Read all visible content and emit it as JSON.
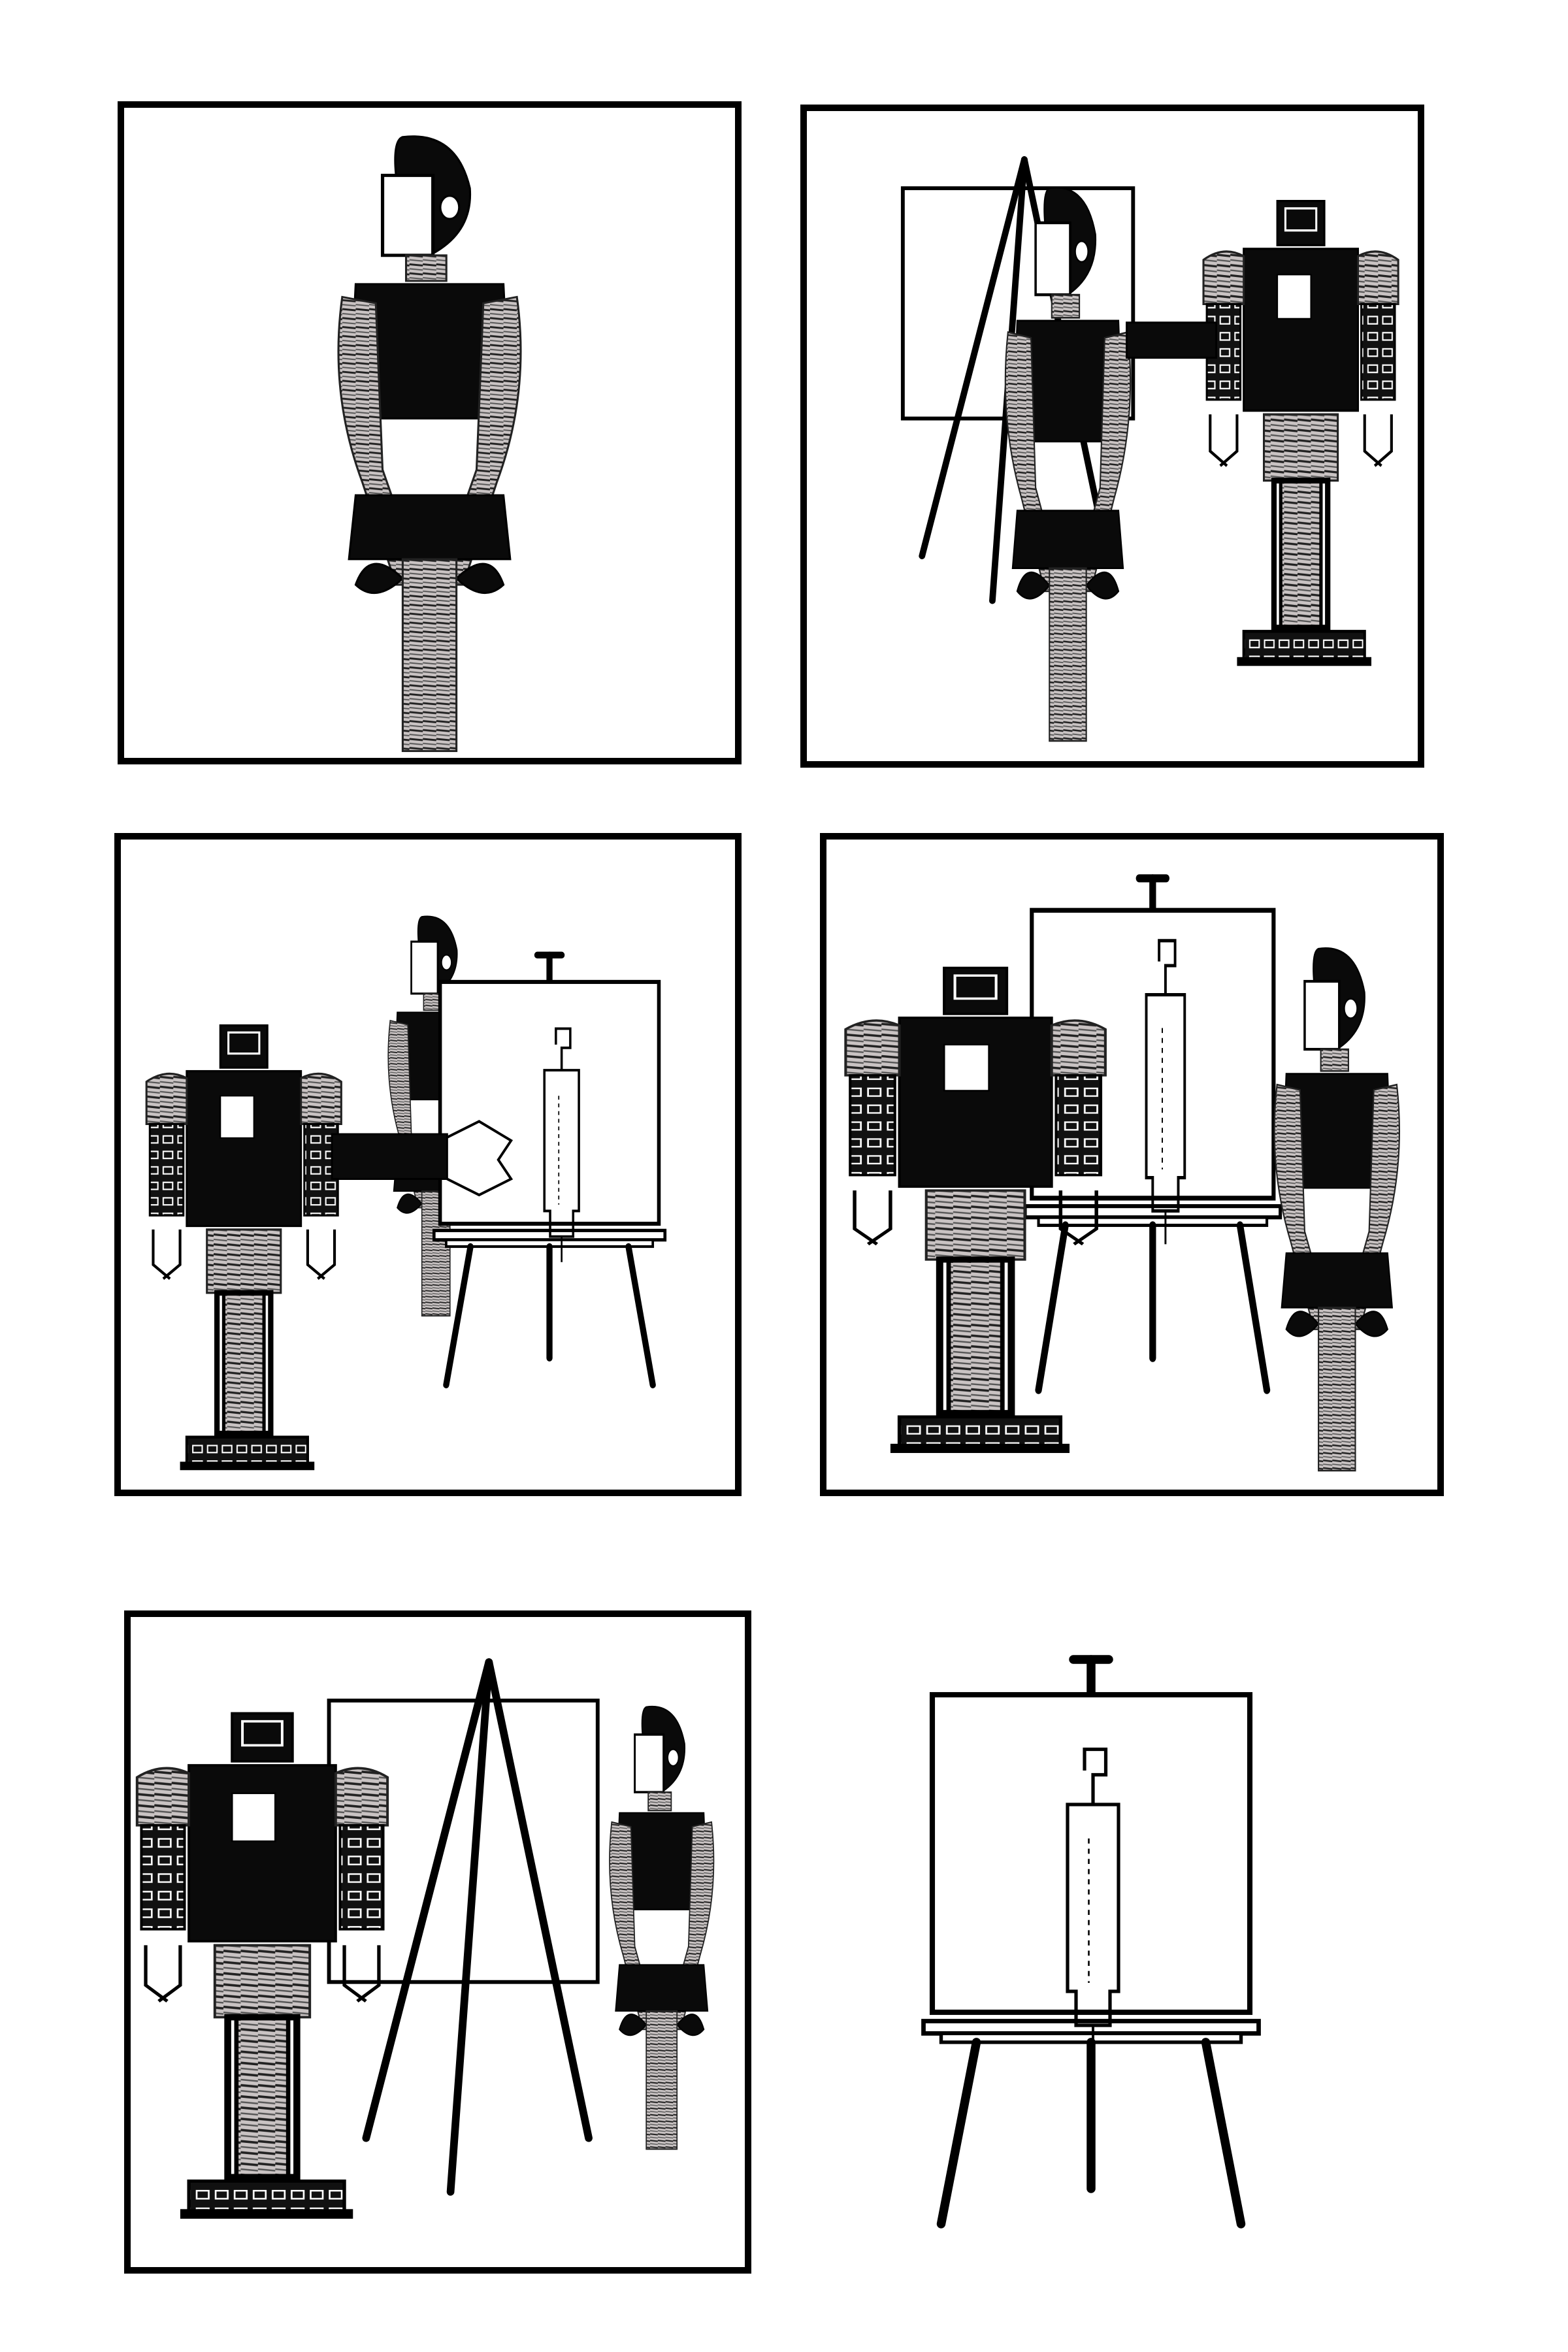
{
  "comic": {
    "panels": [
      {
        "scene": "human-robot-standing"
      },
      {
        "scene": "robot-approaches-easel"
      },
      {
        "scene": "robot-painting"
      },
      {
        "scene": "robot-and-human-view-painting"
      },
      {
        "scene": "human-points-at-painting"
      },
      {
        "scene": "finished-painting"
      }
    ]
  },
  "colors": {
    "ink": "#000000",
    "paper": "#ffffff",
    "coil": "#b8b2b2"
  }
}
